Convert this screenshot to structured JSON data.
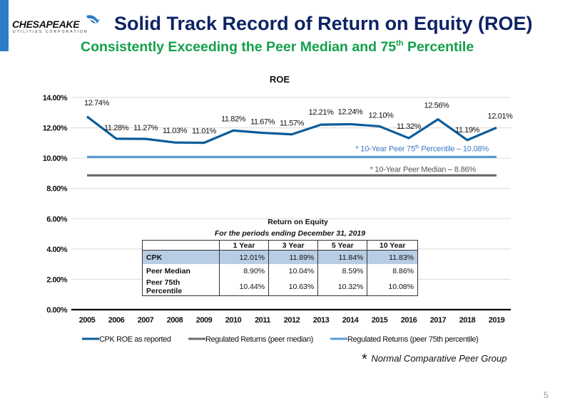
{
  "header": {
    "logo_text": "CHESAPEAKE",
    "logo_subtext": "UTILITIES CORPORATION",
    "title": "Solid Track Record of Return on Equity (ROE)",
    "subtitle_pre": "Consistently Exceeding the Peer Median and 75",
    "subtitle_sup": "th",
    "subtitle_post": " Percentile"
  },
  "colors": {
    "accent": "#2a7dc9",
    "title": "#0f2466",
    "subtitle": "#13a04a",
    "cpk": "#0b5c9a",
    "median": "#6d6d6d",
    "p75": "#5b9bd5",
    "table_highlight": "#b8cce4"
  },
  "chart_data": {
    "type": "line",
    "title": "ROE",
    "xlabel": "",
    "ylabel": "",
    "x": [
      "2005",
      "2006",
      "2007",
      "2008",
      "2009",
      "2010",
      "2011",
      "2012",
      "2013",
      "2014",
      "2015",
      "2016",
      "2017",
      "2018",
      "2019"
    ],
    "ylim": [
      0,
      14
    ],
    "yticks": [
      "0.00%",
      "2.00%",
      "4.00%",
      "6.00%",
      "8.00%",
      "10.00%",
      "12.00%",
      "14.00%"
    ],
    "ytick_values": [
      0,
      2,
      4,
      6,
      8,
      10,
      12,
      14
    ],
    "grid": true,
    "legend_position": "bottom",
    "series": [
      {
        "name": "CPK ROE as reported",
        "values": [
          12.74,
          11.28,
          11.27,
          11.03,
          11.01,
          11.82,
          11.67,
          11.57,
          12.21,
          12.24,
          12.1,
          11.32,
          12.56,
          11.19,
          12.01
        ],
        "labels": [
          "12.74%",
          "11.28%",
          "11.27%",
          "11.03%",
          "11.01%",
          "11.82%",
          "11.67%",
          "11.57%",
          "12.21%",
          "12.24%",
          "12.10%",
          "11.32%",
          "12.56%",
          "11.19%",
          "12.01%"
        ]
      },
      {
        "name": "Regulated Returns (peer median)",
        "values": [
          8.86,
          8.86,
          8.86,
          8.86,
          8.86,
          8.86,
          8.86,
          8.86,
          8.86,
          8.86,
          8.86,
          8.86,
          8.86,
          8.86,
          8.86
        ]
      },
      {
        "name": "Regulated Returns (peer 75th percentile)",
        "values": [
          10.08,
          10.08,
          10.08,
          10.08,
          10.08,
          10.08,
          10.08,
          10.08,
          10.08,
          10.08,
          10.08,
          10.08,
          10.08,
          10.08,
          10.08
        ]
      }
    ],
    "annotations": [
      {
        "text_pre": "* 10-Year Peer 75",
        "text_sup": "th",
        "text_post": " Percentile – 10.08%",
        "series": "Regulated Returns (peer 75th percentile)"
      },
      {
        "text": "* 10-Year Peer Median – 8.86%",
        "series": "Regulated Returns (peer median)"
      }
    ]
  },
  "table": {
    "title": "Return on Equity",
    "subtitle": "For the periods ending December 31, 2019",
    "columns": [
      "",
      "1 Year",
      "3 Year",
      "5 Year",
      "10 Year"
    ],
    "rows": [
      {
        "label": "CPK",
        "values": [
          "12.01%",
          "11.89%",
          "11.84%",
          "11.83%"
        ]
      },
      {
        "label": "Peer Median",
        "values": [
          "8.90%",
          "10.04%",
          "8.59%",
          "8.86%"
        ]
      },
      {
        "label": "Peer 75th Percentile",
        "values": [
          "10.44%",
          "10.63%",
          "10.32%",
          "10.08%"
        ]
      }
    ]
  },
  "footnote": {
    "star": "*",
    "text": "Normal Comparative Peer Group"
  },
  "page_number": "5"
}
